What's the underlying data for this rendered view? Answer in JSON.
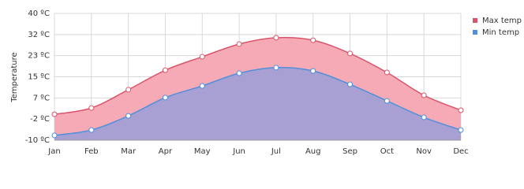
{
  "chart_data": {
    "type": "area",
    "y_label": "Temperature",
    "categories": [
      "Jan",
      "Feb",
      "Mar",
      "Apr",
      "May",
      "Jun",
      "Jul",
      "Aug",
      "Sep",
      "Oct",
      "Nov",
      "Dec"
    ],
    "series": [
      {
        "name": "Max temp",
        "color": "#d9546b",
        "fill": "#f6aab5",
        "values": [
          0.2,
          2.7,
          9.9,
          17.6,
          22.9,
          27.9,
          30.4,
          29.4,
          24.2,
          16.7,
          7.7,
          1.8
        ]
      },
      {
        "name": "Min temp",
        "color": "#4f8fdc",
        "fill": "#a8a0d2",
        "values": [
          -8.1,
          -6,
          -0.4,
          6.8,
          11.4,
          16.4,
          18.6,
          17.3,
          12,
          5.5,
          -1,
          -6
        ]
      }
    ],
    "ylim": [
      -10,
      40
    ],
    "yticks": [
      {
        "value": -10,
        "label": "-10 ºC"
      },
      {
        "value": -1.67,
        "label": "-2 ºC"
      },
      {
        "value": 6.67,
        "label": "7 ºC"
      },
      {
        "value": 15,
        "label": "15 ºC"
      },
      {
        "value": 23.33,
        "label": "23 ºC"
      },
      {
        "value": 31.67,
        "label": "32 ºC"
      },
      {
        "value": 40,
        "label": "40 ºC"
      }
    ],
    "grid": true,
    "legend": "top-right"
  }
}
